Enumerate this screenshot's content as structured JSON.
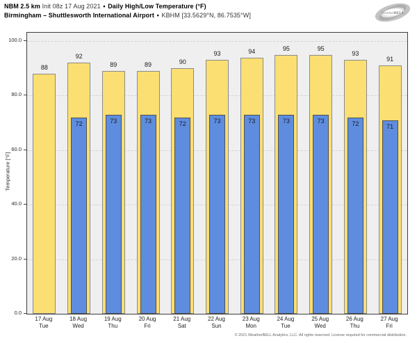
{
  "header": {
    "model": "NBM 2.5 km",
    "init": "Init 08z 17 Aug 2021",
    "separator": "•",
    "product": "Daily High/Low Temperature (°F)",
    "location": "Birmingham – Shuttlesworth International Airport",
    "station": "KBHM [33.5629°N, 86.7535°W]",
    "logo_weather": "Weather",
    "logo_bell": "BELL"
  },
  "chart_data": {
    "type": "bar",
    "title": "Daily High/Low Temperature (°F)",
    "xlabel": "",
    "ylabel": "Temperature [°F]",
    "ylim": [
      0,
      103
    ],
    "yticks": [
      0,
      20,
      40,
      60,
      80,
      100
    ],
    "ytick_labels": [
      "0.0",
      "20.0",
      "40.0",
      "60.0",
      "80.0",
      "100.0"
    ],
    "grid": "horizontal-dashed",
    "legend_position": "none",
    "categories": [
      {
        "date": "17 Aug",
        "day": "Tue"
      },
      {
        "date": "18 Aug",
        "day": "Wed"
      },
      {
        "date": "19 Aug",
        "day": "Thu"
      },
      {
        "date": "20 Aug",
        "day": "Fri"
      },
      {
        "date": "21 Aug",
        "day": "Sat"
      },
      {
        "date": "22 Aug",
        "day": "Sun"
      },
      {
        "date": "23 Aug",
        "day": "Mon"
      },
      {
        "date": "24 Aug",
        "day": "Tue"
      },
      {
        "date": "25 Aug",
        "day": "Wed"
      },
      {
        "date": "26 Aug",
        "day": "Thu"
      },
      {
        "date": "27 Aug",
        "day": "Fri"
      }
    ],
    "series": [
      {
        "name": "High",
        "color": "#FBDF72",
        "values": [
          88,
          92,
          89,
          89,
          90,
          93,
          94,
          95,
          95,
          93,
          91
        ]
      },
      {
        "name": "Low",
        "color": "#5E8DE0",
        "values": [
          null,
          72,
          73,
          73,
          72,
          73,
          73,
          73,
          73,
          72,
          71
        ]
      }
    ]
  },
  "colors": {
    "plot_background": "#EFEFEF",
    "figure_background": "#FFFFFF",
    "high_bar": "#FBDF72",
    "low_bar": "#5E8DE0",
    "gridline": "#D2D2D2",
    "axis_frame": "#3C3C3C"
  },
  "footer": {
    "copyright": "© 2021 WeatherBELL Analytics, LLC. All rights reserved. License required for commercial distribution."
  }
}
